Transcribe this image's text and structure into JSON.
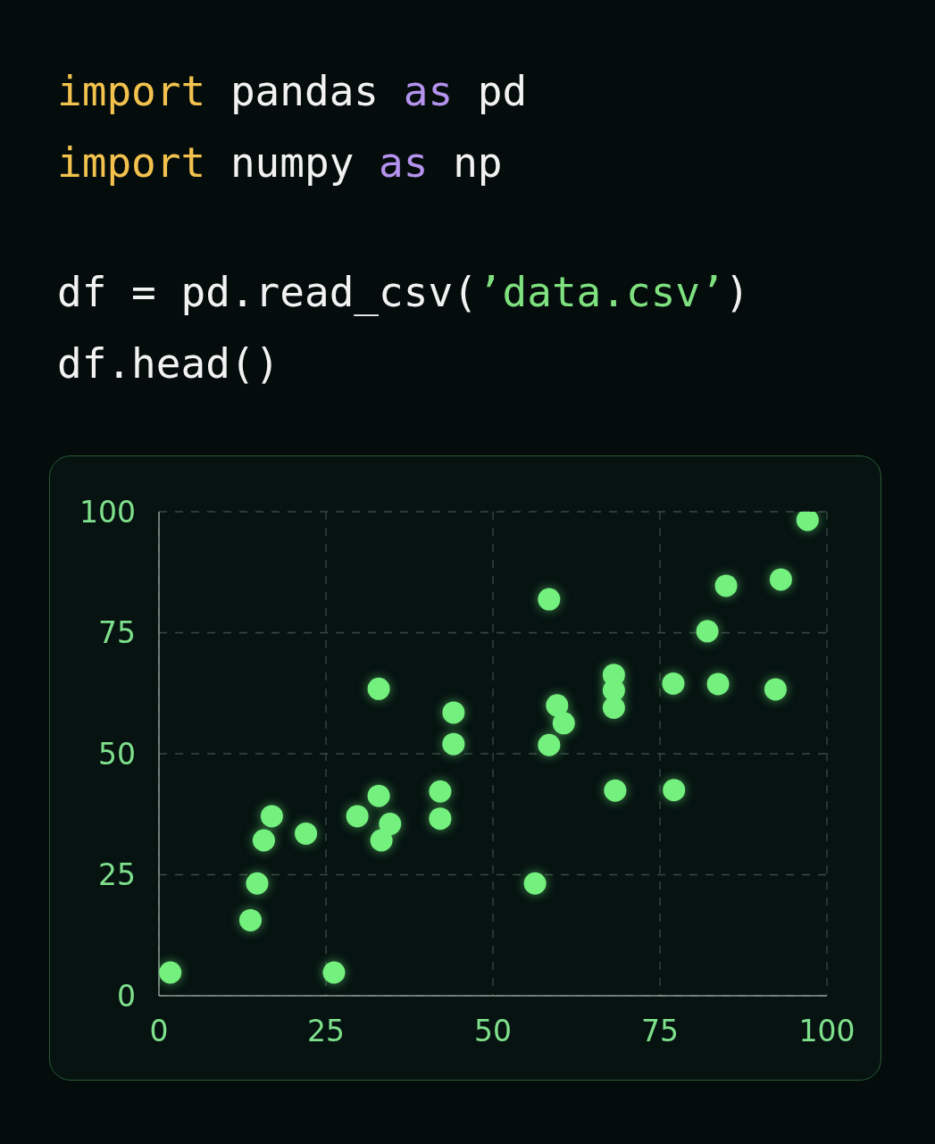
{
  "chart_data": {
    "type": "scatter",
    "annotations": [
      "import pandas as pd",
      "import numpy as np",
      "df = pd.read_csv(’data.csv’)",
      "df.head()"
    ],
    "x": [
      1.7,
      13.7,
      14.7,
      15.7,
      16.9,
      22.0,
      26.2,
      29.7,
      32.9,
      32.9,
      33.3,
      34.6,
      42.1,
      42.1,
      44.1,
      44.1,
      56.3,
      58.4,
      58.4,
      59.6,
      60.6,
      68.1,
      68.1,
      68.1,
      68.3,
      77.0,
      77.1,
      82.1,
      83.7,
      84.9,
      92.3,
      93.1,
      97.1
    ],
    "values": [
      4.8,
      15.6,
      23.2,
      32.1,
      37.1,
      33.5,
      4.8,
      37.1,
      41.3,
      63.4,
      32.1,
      35.5,
      42.2,
      36.6,
      58.5,
      52.0,
      23.2,
      81.9,
      51.8,
      60.0,
      56.3,
      66.3,
      63.1,
      59.5,
      42.4,
      64.5,
      42.5,
      75.3,
      64.4,
      84.7,
      63.3,
      86.0,
      98.3
    ],
    "color": "#74f07e",
    "xlim": [
      0,
      100
    ],
    "ylim": [
      0,
      100
    ],
    "xticks": [
      0,
      25,
      50,
      75,
      100
    ],
    "yticks": [
      0,
      25,
      50,
      75,
      100
    ],
    "grid": true,
    "marker": "circle"
  }
}
